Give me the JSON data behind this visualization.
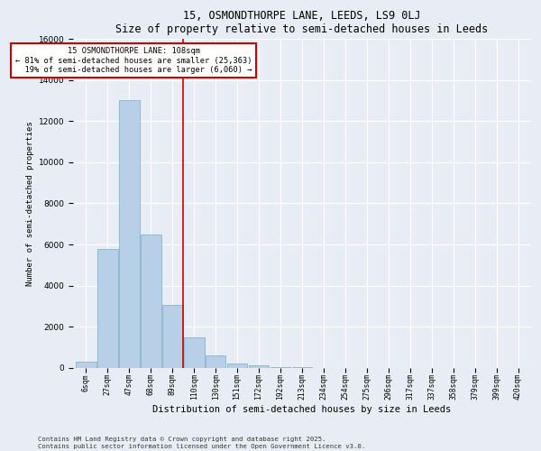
{
  "title1": "15, OSMONDTHORPE LANE, LEEDS, LS9 0LJ",
  "title2": "Size of property relative to semi-detached houses in Leeds",
  "xlabel": "Distribution of semi-detached houses by size in Leeds",
  "ylabel": "Number of semi-detached properties",
  "bar_labels": [
    "6sqm",
    "27sqm",
    "47sqm",
    "68sqm",
    "89sqm",
    "110sqm",
    "130sqm",
    "151sqm",
    "172sqm",
    "192sqm",
    "213sqm",
    "234sqm",
    "254sqm",
    "275sqm",
    "296sqm",
    "317sqm",
    "337sqm",
    "358sqm",
    "379sqm",
    "399sqm",
    "420sqm"
  ],
  "bar_values": [
    300,
    5800,
    13000,
    6500,
    3050,
    1500,
    620,
    230,
    130,
    50,
    30,
    10,
    0,
    0,
    0,
    0,
    0,
    0,
    0,
    0,
    0
  ],
  "bar_color": "#b8cfe8",
  "bar_edge_color": "#7aaac8",
  "property_line_index": 5,
  "property_size": "108sqm",
  "pct_smaller": 81,
  "count_smaller": "25,363",
  "pct_larger": 19,
  "count_larger": "6,060",
  "vline_color": "#cc0000",
  "annotation_box_color": "#cc0000",
  "ylim": [
    0,
    16000
  ],
  "yticks": [
    0,
    2000,
    4000,
    6000,
    8000,
    10000,
    12000,
    14000,
    16000
  ],
  "bg_color": "#e8edf5",
  "plot_bg_color": "#e8edf5",
  "footer1": "Contains HM Land Registry data © Crown copyright and database right 2025.",
  "footer2": "Contains public sector information licensed under the Open Government Licence v3.0."
}
